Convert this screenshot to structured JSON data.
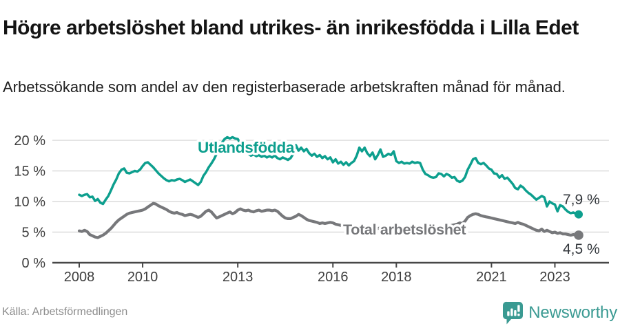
{
  "header": {
    "title": "Högre arbetslöshet bland utrikes- än inrikesfödda i Lilla Edet",
    "subtitle": "Arbetssökande som andel av den registerbaserade arbetskraften månad för månad."
  },
  "chart_data": {
    "type": "line",
    "x_start": "2008-01",
    "x_end": "2023-10",
    "x_frequency": "monthly",
    "x_tick_years": [
      2008,
      2010,
      2013,
      2016,
      2018,
      2021,
      2023
    ],
    "y_ticks": [
      0,
      5,
      10,
      15,
      20
    ],
    "y_tick_suffix": " %",
    "ylim": [
      0,
      21.5
    ],
    "grid": true,
    "series": [
      {
        "name": "Utlandsfödda",
        "color": "#0d9f8e",
        "end_value_label": "7,9 %",
        "values": [
          11.1,
          10.9,
          11.1,
          11.2,
          10.7,
          10.8,
          10.1,
          10.4,
          9.8,
          9.6,
          10.3,
          10.9,
          11.8,
          12.8,
          13.6,
          14.6,
          15.2,
          15.4,
          14.7,
          14.6,
          14.8,
          15.0,
          14.9,
          15.2,
          15.8,
          16.3,
          16.4,
          16.0,
          15.6,
          15.1,
          14.6,
          14.2,
          13.8,
          13.5,
          13.3,
          13.5,
          13.4,
          13.6,
          13.7,
          13.5,
          13.2,
          13.4,
          13.6,
          13.3,
          13.0,
          12.7,
          13.2,
          14.2,
          14.8,
          15.6,
          16.2,
          16.9,
          17.8,
          18.8,
          19.6,
          20.2,
          20.5,
          20.3,
          20.5,
          20.3,
          20.2,
          19.4,
          18.7,
          18.2,
          17.8,
          17.5,
          17.7,
          17.4,
          17.6,
          17.3,
          17.5,
          17.2,
          17.4,
          17.2,
          17.5,
          17.1,
          16.9,
          17.2,
          17.0,
          16.8,
          17.1,
          17.8,
          19.2,
          18.3,
          18.8,
          18.2,
          18.6,
          17.9,
          17.5,
          17.8,
          17.3,
          17.6,
          17.1,
          17.4,
          16.9,
          17.2,
          16.4,
          16.9,
          16.2,
          16.5,
          16.0,
          16.4,
          15.9,
          16.3,
          16.6,
          17.5,
          18.8,
          18.2,
          18.8,
          17.9,
          17.4,
          18.0,
          16.9,
          17.6,
          18.5,
          17.3,
          17.5,
          17.8,
          17.6,
          18.2,
          16.6,
          16.3,
          16.5,
          16.2,
          16.3,
          16.2,
          16.5,
          16.3,
          16.4,
          16.3,
          15.2,
          14.5,
          14.3,
          14.0,
          13.9,
          14.0,
          14.6,
          14.5,
          14.1,
          14.5,
          14.3,
          13.9,
          14.0,
          13.4,
          13.2,
          13.4,
          14.0,
          15.2,
          16.0,
          16.9,
          17.1,
          16.3,
          16.1,
          16.3,
          15.9,
          15.4,
          15.2,
          14.6,
          14.5,
          13.9,
          14.3,
          13.7,
          13.9,
          13.4,
          12.9,
          12.2,
          12.0,
          12.6,
          12.3,
          11.8,
          11.4,
          11.1,
          10.7,
          10.3,
          10.6,
          10.9,
          10.7,
          9.2,
          10.0,
          9.7,
          9.5,
          8.4,
          9.4,
          9.2,
          8.7,
          8.3,
          8.1,
          8.2,
          8.0,
          7.9
        ]
      },
      {
        "name": "Total arbetslöshet",
        "color": "#77787b",
        "end_value_label": "4,5 %",
        "values": [
          5.2,
          5.1,
          5.3,
          5.1,
          4.6,
          4.4,
          4.2,
          4.1,
          4.3,
          4.5,
          4.8,
          5.2,
          5.6,
          6.1,
          6.6,
          7.0,
          7.3,
          7.6,
          7.9,
          8.1,
          8.2,
          8.3,
          8.4,
          8.5,
          8.6,
          8.8,
          9.1,
          9.4,
          9.7,
          9.6,
          9.3,
          9.1,
          8.9,
          8.7,
          8.4,
          8.2,
          8.1,
          8.2,
          8.0,
          7.9,
          7.7,
          7.8,
          7.9,
          7.8,
          7.6,
          7.4,
          7.6,
          8.0,
          8.4,
          8.6,
          8.3,
          7.8,
          7.3,
          7.5,
          7.7,
          7.9,
          8.1,
          8.3,
          8.0,
          8.2,
          8.6,
          8.8,
          8.6,
          8.5,
          8.6,
          8.4,
          8.3,
          8.5,
          8.6,
          8.4,
          8.5,
          8.6,
          8.6,
          8.5,
          8.6,
          8.4,
          8.0,
          7.6,
          7.3,
          7.2,
          7.2,
          7.4,
          7.6,
          7.9,
          7.7,
          7.4,
          7.1,
          6.9,
          6.8,
          6.7,
          6.6,
          6.4,
          6.5,
          6.4,
          6.5,
          6.6,
          6.5,
          6.3,
          6.2,
          6.1,
          6.0,
          5.9,
          5.9,
          5.8,
          5.9,
          5.8,
          5.7,
          5.8,
          5.7,
          5.8,
          5.7,
          5.6,
          5.5,
          5.6,
          5.7,
          5.6,
          5.5,
          5.6,
          5.7,
          5.6,
          5.5,
          5.6,
          5.5,
          5.4,
          5.3,
          5.4,
          5.5,
          5.4,
          5.3,
          5.4,
          5.5,
          5.4,
          5.4,
          5.5,
          5.6,
          5.5,
          5.6,
          5.7,
          5.8,
          5.9,
          6.0,
          6.1,
          6.2,
          6.3,
          6.5,
          6.4,
          6.8,
          7.4,
          7.7,
          7.9,
          8.0,
          7.9,
          7.7,
          7.6,
          7.5,
          7.4,
          7.3,
          7.2,
          7.1,
          7.0,
          6.9,
          6.8,
          6.7,
          6.6,
          6.5,
          6.4,
          6.6,
          6.4,
          6.3,
          6.1,
          5.9,
          5.7,
          5.5,
          5.3,
          5.2,
          5.5,
          5.1,
          5.3,
          5.1,
          4.9,
          5.0,
          4.8,
          4.9,
          4.7,
          4.7,
          4.6,
          4.5,
          4.6,
          4.5,
          4.5
        ]
      }
    ]
  },
  "footer": {
    "source": "Källa: Arbetsförmedlingen",
    "brand": "Newsworthy"
  },
  "colors": {
    "accent_teal": "#0d9f8e",
    "series_gray": "#77787b",
    "logo_teal": "#3a9a92",
    "grid": "#dbdbdb",
    "axis": "#474747",
    "axis_text": "#3d3d3d",
    "annotation_text": "#33373c",
    "muted_text": "#8c8c8c"
  }
}
